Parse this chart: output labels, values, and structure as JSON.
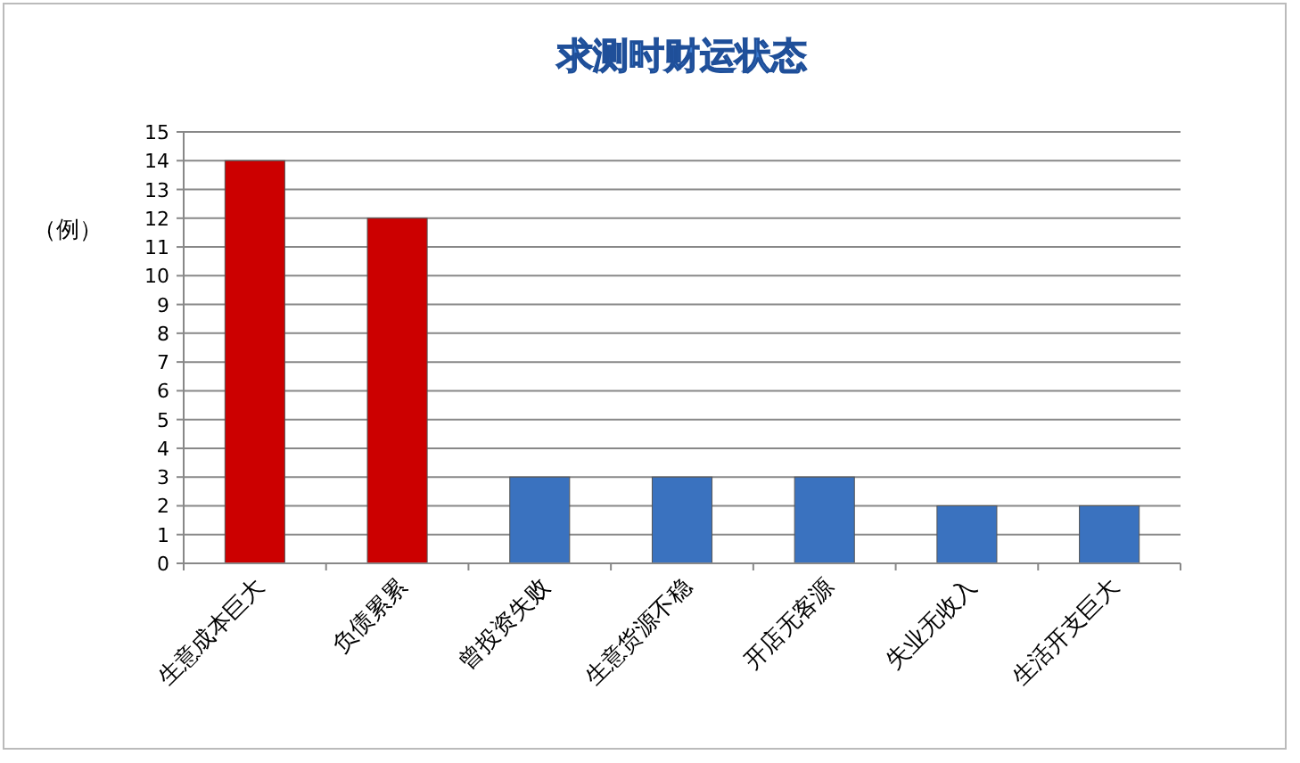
{
  "chart_data": {
    "type": "bar",
    "title": "求测时财运状态",
    "ylabel": "（例）",
    "categories": [
      "生意成本巨大",
      "负债累累",
      "曾投资失败",
      "生意货源不稳",
      "开店无客源",
      "失业无收入",
      "生活开支巨大"
    ],
    "values": [
      14,
      12,
      3,
      3,
      3,
      2,
      2
    ],
    "colors": [
      "#cc0000",
      "#cc0000",
      "#3a72bf",
      "#3a72bf",
      "#3a72bf",
      "#3a72bf",
      "#3a72bf"
    ],
    "ylim": [
      0,
      15
    ],
    "yticks": [
      0,
      1,
      2,
      3,
      4,
      5,
      6,
      7,
      8,
      9,
      10,
      11,
      12,
      13,
      14,
      15
    ],
    "grid": "y"
  }
}
